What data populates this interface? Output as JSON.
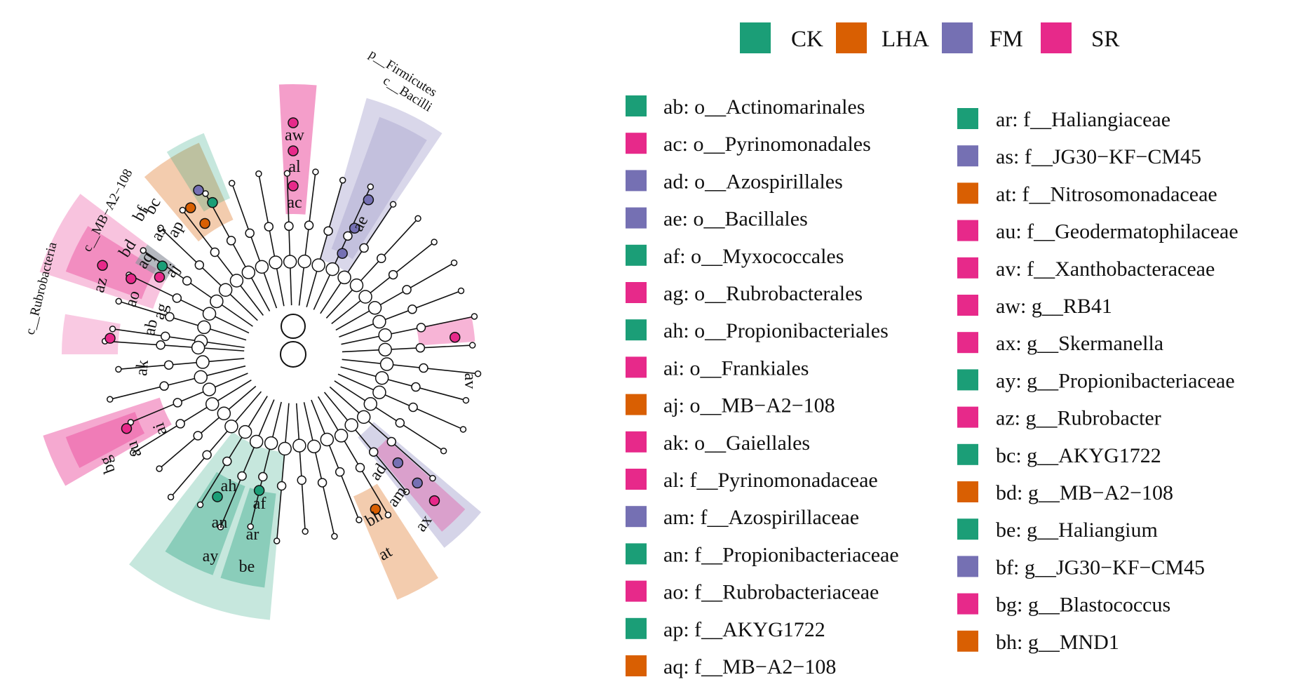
{
  "colors": {
    "CK": "#1b9e77",
    "LHA": "#d95f02",
    "FM": "#7570b3",
    "SR": "#e7298a"
  },
  "legend_groups": [
    {
      "name": "CK",
      "color_key": "CK"
    },
    {
      "name": "LHA",
      "color_key": "LHA"
    },
    {
      "name": "FM",
      "color_key": "FM"
    },
    {
      "name": "SR",
      "color_key": "SR"
    }
  ],
  "taxa_left": [
    {
      "text": "ab: o__Actinomarinales",
      "group": "CK"
    },
    {
      "text": "ac: o__Pyrinomonadales",
      "group": "SR"
    },
    {
      "text": "ad: o__Azospirillales",
      "group": "FM"
    },
    {
      "text": "ae: o__Bacillales",
      "group": "FM"
    },
    {
      "text": "af: o__Myxococcales",
      "group": "CK"
    },
    {
      "text": "ag: o__Rubrobacterales",
      "group": "SR"
    },
    {
      "text": "ah: o__Propionibacteriales",
      "group": "CK"
    },
    {
      "text": "ai: o__Frankiales",
      "group": "SR"
    },
    {
      "text": "aj: o__MB−A2−108",
      "group": "LHA"
    },
    {
      "text": "ak: o__Gaiellales",
      "group": "SR"
    },
    {
      "text": "al: f__Pyrinomonadaceae",
      "group": "SR"
    },
    {
      "text": "am: f__Azospirillaceae",
      "group": "FM"
    },
    {
      "text": "an: f__Propionibacteriaceae",
      "group": "CK"
    },
    {
      "text": "ao: f__Rubrobacteriaceae",
      "group": "SR"
    },
    {
      "text": "ap: f__AKYG1722",
      "group": "CK"
    },
    {
      "text": "aq: f__MB−A2−108",
      "group": "LHA"
    }
  ],
  "taxa_right": [
    {
      "text": "ar: f__Haliangiaceae",
      "group": "CK"
    },
    {
      "text": "as: f__JG30−KF−CM45",
      "group": "FM"
    },
    {
      "text": "at: f__Nitrosomonadaceae",
      "group": "LHA"
    },
    {
      "text": "au: f__Geodermatophilaceae",
      "group": "SR"
    },
    {
      "text": "av: f__Xanthobacteraceae",
      "group": "SR"
    },
    {
      "text": "aw: g__RB41",
      "group": "SR"
    },
    {
      "text": "ax: g__Skermanella",
      "group": "SR"
    },
    {
      "text": "ay: g__Propionibacteriaceae",
      "group": "CK"
    },
    {
      "text": "az: g__Rubrobacter",
      "group": "SR"
    },
    {
      "text": "bc: g__AKYG1722",
      "group": "CK"
    },
    {
      "text": "bd: g__MB−A2−108",
      "group": "LHA"
    },
    {
      "text": "be: g__Haliangium",
      "group": "CK"
    },
    {
      "text": "bf: g__JG30−KF−CM45",
      "group": "FM"
    },
    {
      "text": "bg: g__Blastococcus",
      "group": "SR"
    },
    {
      "text": "bh: g__MND1",
      "group": "LHA"
    }
  ],
  "clade_labels": {
    "firmicutes": "p__Firmicutes",
    "bacilli": "c__Bacilli",
    "mba2": "c__MB−A2−108",
    "rubrobacteria": "c__Rubrobacteria"
  },
  "leaf_labels": {
    "aw": "aw",
    "al": "al",
    "ac": "ac",
    "ae": "ae",
    "bf": "bf",
    "bc": "bc",
    "as": "as",
    "ap": "ap",
    "bd": "bd",
    "aq": "aq",
    "aj": "aj",
    "az": "az",
    "ao": "ao",
    "ag": "ag",
    "ab": "ab",
    "ak": "ak",
    "av": "av",
    "ai": "ai",
    "au": "au",
    "bg": "bg",
    "ah": "ah",
    "an": "an",
    "ay": "ay",
    "af": "af",
    "ar": "ar",
    "be": "be",
    "bh": "bh",
    "at": "at",
    "ad": "ad",
    "am": "am",
    "ax": "ax"
  }
}
